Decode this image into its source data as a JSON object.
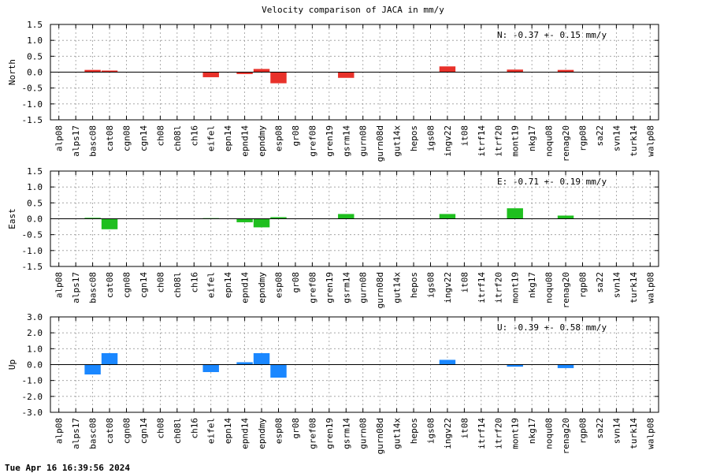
{
  "footer": {
    "timestamp": "Tue Apr 16 16:39:56 2024"
  },
  "chart_data": {
    "type": "bar",
    "title": "Velocity comparison of JACA in mm/y",
    "categories": [
      "alp08",
      "alps17",
      "basc08",
      "cat08",
      "cgn08",
      "cgn14",
      "ch08",
      "ch08l",
      "ch16",
      "eifel",
      "epn14",
      "epnd14",
      "epndmy",
      "esp08",
      "gr08",
      "gref08",
      "gren19",
      "gsrm14",
      "gurn08",
      "gurn08d",
      "gut14x",
      "hepos",
      "igs08",
      "ingv22",
      "it08",
      "itrf14",
      "itrf20",
      "mont19",
      "nkg17",
      "noqu08",
      "renag20",
      "rgp08",
      "sa22",
      "svn14",
      "turk14",
      "walp08"
    ],
    "grid": true,
    "panels": [
      {
        "ylabel": "North",
        "ylim": [
          -1.5,
          1.5
        ],
        "yticks": [
          "-1.5",
          "-1.0",
          "-0.5",
          "0.0",
          "0.5",
          "1.0",
          "1.5"
        ],
        "color": "#e8312a",
        "stat": "N:  -0.37 +-  0.15 mm/y",
        "values": [
          null,
          null,
          0.07,
          0.05,
          null,
          null,
          null,
          null,
          null,
          -0.16,
          null,
          -0.06,
          0.1,
          -0.35,
          null,
          null,
          null,
          -0.18,
          null,
          null,
          null,
          null,
          null,
          0.18,
          null,
          null,
          null,
          0.08,
          null,
          null,
          0.07,
          null,
          null,
          null,
          null,
          null
        ]
      },
      {
        "ylabel": "East",
        "ylim": [
          -1.5,
          1.5
        ],
        "yticks": [
          "-1.5",
          "-1.0",
          "-0.5",
          "0.0",
          "0.5",
          "1.0",
          "1.5"
        ],
        "color": "#1fbf1f",
        "stat": "E:  -0.71 +-  0.19 mm/y",
        "values": [
          null,
          null,
          0.03,
          -0.33,
          null,
          null,
          null,
          null,
          null,
          0.02,
          null,
          -0.11,
          -0.27,
          0.05,
          null,
          null,
          null,
          0.15,
          null,
          null,
          null,
          null,
          null,
          0.15,
          null,
          null,
          null,
          0.33,
          null,
          null,
          0.1,
          null,
          null,
          null,
          null,
          null
        ]
      },
      {
        "ylabel": "Up",
        "ylim": [
          -3.0,
          3.0
        ],
        "yticks": [
          "-3.0",
          "-2.0",
          "-1.0",
          "0.0",
          "1.0",
          "2.0",
          "3.0"
        ],
        "color": "#1a87ff",
        "stat": "U:  -0.39 +-  0.58 mm/y",
        "values": [
          null,
          null,
          -0.62,
          0.72,
          null,
          null,
          null,
          null,
          null,
          -0.47,
          null,
          0.15,
          0.72,
          -0.82,
          null,
          null,
          null,
          null,
          null,
          null,
          null,
          null,
          null,
          0.3,
          null,
          null,
          null,
          -0.13,
          null,
          null,
          -0.22,
          null,
          null,
          null,
          null,
          null
        ]
      }
    ]
  }
}
